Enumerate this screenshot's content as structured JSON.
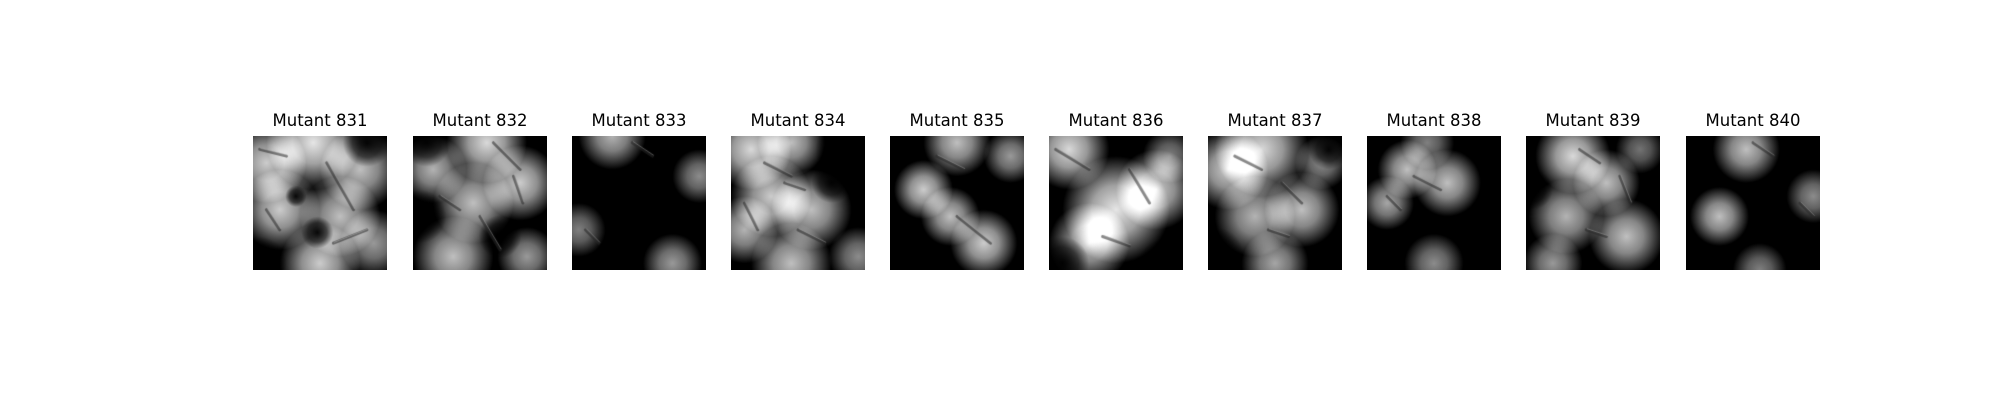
{
  "figure": {
    "background": "#ffffff",
    "panels": [
      {
        "title": "Mutant 831",
        "image": {
          "blobs": [
            [
              0.45,
              0.05,
              0.35,
              0.9
            ],
            [
              0.1,
              0.2,
              0.3,
              0.8
            ],
            [
              0.8,
              0.25,
              0.3,
              0.75
            ],
            [
              0.2,
              0.55,
              0.3,
              0.8
            ],
            [
              0.65,
              0.6,
              0.3,
              0.75
            ],
            [
              0.5,
              0.95,
              0.3,
              0.8
            ],
            [
              0.9,
              0.8,
              0.25,
              0.6
            ]
          ],
          "holes": [
            [
              0.85,
              0.05,
              0.18
            ],
            [
              0.05,
              0.95,
              0.2
            ],
            [
              0.48,
              0.72,
              0.12
            ],
            [
              0.32,
              0.45,
              0.08
            ]
          ],
          "strokes": [
            [
              0.05,
              0.1,
              0.25,
              0.15
            ],
            [
              0.55,
              0.2,
              0.75,
              0.55
            ],
            [
              0.1,
              0.55,
              0.2,
              0.7
            ],
            [
              0.6,
              0.8,
              0.85,
              0.7
            ]
          ]
        }
      },
      {
        "title": "Mutant 832",
        "image": {
          "blobs": [
            [
              0.55,
              0.05,
              0.3,
              0.85
            ],
            [
              0.8,
              0.35,
              0.28,
              0.8
            ],
            [
              0.15,
              0.25,
              0.25,
              0.7
            ],
            [
              0.45,
              0.5,
              0.3,
              0.75
            ],
            [
              0.3,
              0.9,
              0.3,
              0.75
            ],
            [
              0.85,
              0.9,
              0.22,
              0.6
            ]
          ],
          "holes": [
            [
              0.1,
              0.05,
              0.18
            ],
            [
              0.05,
              0.6,
              0.2
            ],
            [
              0.65,
              0.75,
              0.16
            ]
          ],
          "strokes": [
            [
              0.6,
              0.05,
              0.8,
              0.25
            ],
            [
              0.2,
              0.45,
              0.35,
              0.55
            ],
            [
              0.75,
              0.3,
              0.82,
              0.5
            ],
            [
              0.5,
              0.6,
              0.65,
              0.85
            ]
          ]
        }
      },
      {
        "title": "Mutant 833",
        "image": {
          "blobs": [
            [
              0.3,
              0.0,
              0.25,
              0.7
            ],
            [
              0.95,
              0.3,
              0.2,
              0.55
            ],
            [
              0.05,
              0.7,
              0.2,
              0.5
            ],
            [
              0.75,
              0.95,
              0.22,
              0.6
            ]
          ],
          "holes": [],
          "strokes": [
            [
              0.45,
              0.05,
              0.6,
              0.15
            ],
            [
              0.1,
              0.7,
              0.2,
              0.8
            ]
          ]
        }
      },
      {
        "title": "Mutant 834",
        "image": {
          "blobs": [
            [
              0.15,
              0.1,
              0.3,
              0.85
            ],
            [
              0.45,
              0.05,
              0.25,
              0.75
            ],
            [
              0.3,
              0.45,
              0.3,
              0.8
            ],
            [
              0.1,
              0.7,
              0.25,
              0.7
            ],
            [
              0.6,
              0.55,
              0.3,
              0.75
            ],
            [
              0.45,
              0.95,
              0.3,
              0.75
            ],
            [
              0.95,
              0.9,
              0.22,
              0.55
            ]
          ],
          "holes": [
            [
              0.85,
              0.1,
              0.22
            ],
            [
              0.75,
              0.35,
              0.15
            ]
          ],
          "strokes": [
            [
              0.25,
              0.2,
              0.45,
              0.3
            ],
            [
              0.4,
              0.35,
              0.55,
              0.4
            ],
            [
              0.5,
              0.7,
              0.7,
              0.8
            ],
            [
              0.1,
              0.5,
              0.2,
              0.7
            ]
          ]
        }
      },
      {
        "title": "Mutant 835",
        "image": {
          "blobs": [
            [
              0.5,
              0.05,
              0.25,
              0.75
            ],
            [
              0.25,
              0.4,
              0.22,
              0.8
            ],
            [
              0.9,
              0.15,
              0.2,
              0.6
            ],
            [
              0.45,
              0.6,
              0.22,
              0.75
            ],
            [
              0.7,
              0.8,
              0.25,
              0.8
            ]
          ],
          "holes": [],
          "strokes": [
            [
              0.35,
              0.15,
              0.55,
              0.25
            ],
            [
              0.5,
              0.6,
              0.75,
              0.8
            ]
          ]
        }
      },
      {
        "title": "Mutant 836",
        "image": {
          "blobs": [
            [
              0.15,
              0.1,
              0.3,
              0.85
            ],
            [
              0.5,
              0.55,
              0.4,
              0.9
            ],
            [
              0.8,
              0.4,
              0.3,
              0.8
            ],
            [
              0.3,
              0.8,
              0.3,
              0.75
            ],
            [
              0.9,
              0.15,
              0.2,
              0.5
            ]
          ],
          "holes": [
            [
              0.1,
              0.95,
              0.2
            ],
            [
              0.85,
              0.95,
              0.18
            ]
          ],
          "strokes": [
            [
              0.05,
              0.1,
              0.3,
              0.25
            ],
            [
              0.6,
              0.25,
              0.75,
              0.5
            ],
            [
              0.4,
              0.75,
              0.6,
              0.82
            ]
          ]
        }
      },
      {
        "title": "Mutant 837",
        "image": {
          "blobs": [
            [
              0.4,
              0.1,
              0.35,
              0.85
            ],
            [
              0.15,
              0.25,
              0.3,
              0.8
            ],
            [
              0.7,
              0.55,
              0.28,
              0.75
            ],
            [
              0.35,
              0.6,
              0.3,
              0.7
            ],
            [
              0.85,
              0.2,
              0.2,
              0.55
            ],
            [
              0.5,
              0.95,
              0.25,
              0.65
            ]
          ],
          "holes": [
            [
              0.9,
              0.1,
              0.15
            ],
            [
              0.05,
              0.9,
              0.22
            ]
          ],
          "strokes": [
            [
              0.2,
              0.15,
              0.4,
              0.25
            ],
            [
              0.55,
              0.35,
              0.7,
              0.5
            ],
            [
              0.45,
              0.7,
              0.6,
              0.75
            ]
          ]
        }
      },
      {
        "title": "Mutant 838",
        "image": {
          "blobs": [
            [
              0.3,
              0.25,
              0.22,
              0.75
            ],
            [
              0.6,
              0.35,
              0.25,
              0.75
            ],
            [
              0.15,
              0.5,
              0.2,
              0.65
            ],
            [
              0.45,
              0.05,
              0.2,
              0.5
            ],
            [
              0.5,
              0.95,
              0.22,
              0.55
            ]
          ],
          "holes": [],
          "strokes": [
            [
              0.35,
              0.3,
              0.55,
              0.4
            ],
            [
              0.15,
              0.45,
              0.25,
              0.55
            ]
          ]
        }
      },
      {
        "title": "Mutant 839",
        "image": {
          "blobs": [
            [
              0.35,
              0.15,
              0.28,
              0.85
            ],
            [
              0.6,
              0.35,
              0.25,
              0.75
            ],
            [
              0.3,
              0.6,
              0.28,
              0.7
            ],
            [
              0.75,
              0.75,
              0.28,
              0.75
            ],
            [
              0.2,
              0.95,
              0.22,
              0.6
            ],
            [
              0.85,
              0.1,
              0.18,
              0.45
            ]
          ],
          "holes": [
            [
              0.05,
              0.4,
              0.15
            ]
          ],
          "strokes": [
            [
              0.4,
              0.1,
              0.55,
              0.2
            ],
            [
              0.7,
              0.3,
              0.78,
              0.5
            ],
            [
              0.45,
              0.7,
              0.6,
              0.75
            ]
          ]
        }
      },
      {
        "title": "Mutant 840",
        "image": {
          "blobs": [
            [
              0.45,
              0.1,
              0.25,
              0.75
            ],
            [
              0.25,
              0.6,
              0.22,
              0.75
            ],
            [
              0.95,
              0.45,
              0.2,
              0.55
            ],
            [
              0.55,
              1.0,
              0.2,
              0.5
            ]
          ],
          "holes": [],
          "strokes": [
            [
              0.5,
              0.05,
              0.65,
              0.15
            ],
            [
              0.85,
              0.5,
              0.95,
              0.6
            ]
          ]
        }
      }
    ]
  }
}
